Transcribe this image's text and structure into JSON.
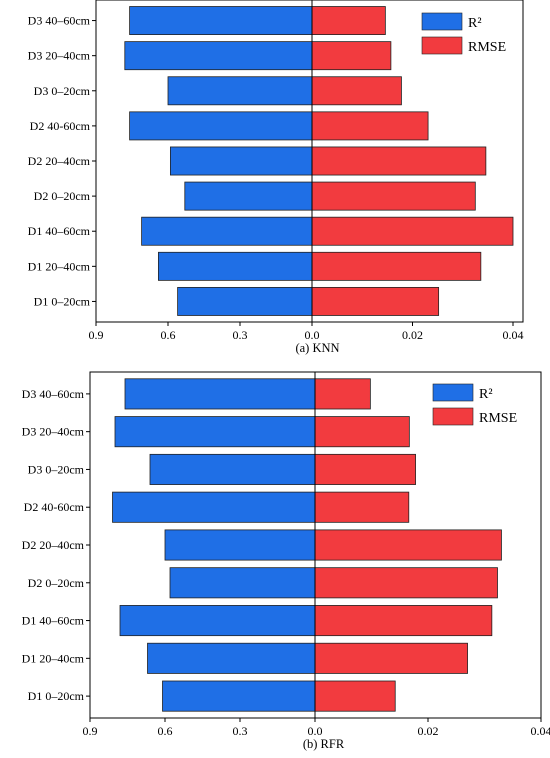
{
  "colors": {
    "r2": "#1f6fe6",
    "rmse": "#f23b3f",
    "edge": "#222222"
  },
  "chart_data": [
    {
      "type": "bar",
      "orientation": "horizontal-diverging",
      "caption": "(a) KNN",
      "categories": [
        "D3 40–60cm",
        "D3 20–40cm",
        "D3 0–20cm",
        "D2 40-60cm",
        "D2 20–40cm",
        "D2 0–20cm",
        "D1 40–60cm",
        "D1 20–40cm",
        "D1 0–20cm"
      ],
      "series": [
        {
          "name": "R²",
          "side": "left",
          "values": [
            0.76,
            0.78,
            0.6,
            0.76,
            0.59,
            0.53,
            0.71,
            0.64,
            0.56
          ],
          "xlim": [
            0.9,
            0
          ],
          "ticks": [
            0.9,
            0.6,
            0.3,
            0.0
          ],
          "tick_labels": [
            "0.9",
            "0.6",
            "0.3",
            "0.0"
          ]
        },
        {
          "name": "RMSE",
          "side": "right",
          "values": [
            0.0146,
            0.0157,
            0.0178,
            0.0231,
            0.0346,
            0.0325,
            0.04,
            0.0336,
            0.0252
          ],
          "xlim": [
            0,
            0.04
          ],
          "ticks": [
            0.02,
            0.04
          ],
          "tick_labels": [
            "0.02",
            "0.04"
          ]
        }
      ],
      "legend": {
        "position": "top-right",
        "labels": [
          "R²",
          "RMSE"
        ]
      }
    },
    {
      "type": "bar",
      "orientation": "horizontal-diverging",
      "caption": "(b) RFR",
      "categories": [
        "D3 40–60cm",
        "D3 20–40cm",
        "D3 0–20cm",
        "D2 40-60cm",
        "D2 20–40cm",
        "D2 0–20cm",
        "D1 40–60cm",
        "D1 20–40cm",
        "D1 0–20cm"
      ],
      "series": [
        {
          "name": "R²",
          "side": "left",
          "values": [
            0.76,
            0.8,
            0.66,
            0.81,
            0.6,
            0.58,
            0.78,
            0.67,
            0.61
          ],
          "xlim": [
            0.9,
            0
          ],
          "ticks": [
            0.9,
            0.6,
            0.3,
            0.0
          ],
          "tick_labels": [
            "0.9",
            "0.6",
            "0.3",
            "0.0"
          ]
        },
        {
          "name": "RMSE",
          "side": "right",
          "values": [
            0.0098,
            0.0167,
            0.0178,
            0.0166,
            0.033,
            0.0323,
            0.0313,
            0.027,
            0.0142
          ],
          "xlim": [
            0,
            0.04
          ],
          "ticks": [
            0.02,
            0.04
          ],
          "tick_labels": [
            "0.02",
            "0.04"
          ]
        }
      ],
      "legend": {
        "position": "top-right",
        "labels": [
          "R²",
          "RMSE"
        ]
      }
    }
  ]
}
